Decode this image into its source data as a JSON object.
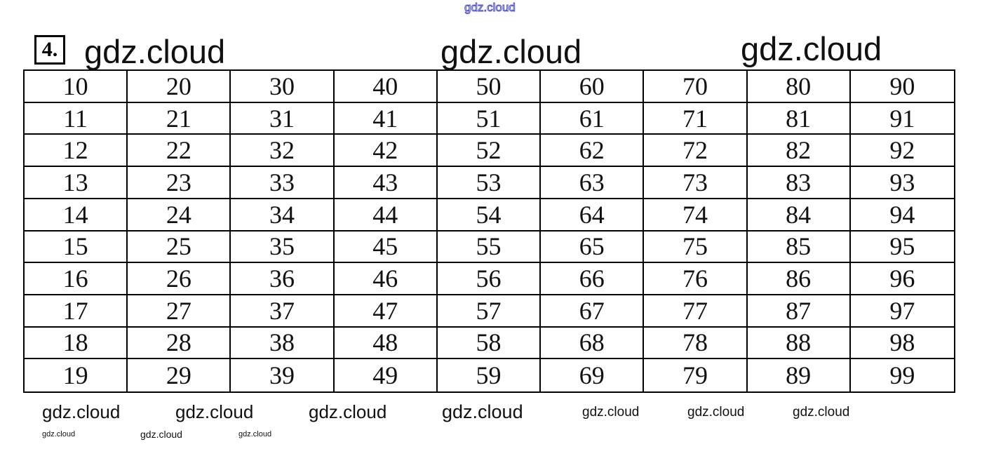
{
  "exercise_number": "4.",
  "table": {
    "rows": [
      [
        "10",
        "20",
        "30",
        "40",
        "50",
        "60",
        "70",
        "80",
        "90"
      ],
      [
        "11",
        "21",
        "31",
        "41",
        "51",
        "61",
        "71",
        "81",
        "91"
      ],
      [
        "12",
        "22",
        "32",
        "42",
        "52",
        "62",
        "72",
        "82",
        "92"
      ],
      [
        "13",
        "23",
        "33",
        "43",
        "53",
        "63",
        "73",
        "83",
        "93"
      ],
      [
        "14",
        "24",
        "34",
        "44",
        "54",
        "64",
        "74",
        "84",
        "94"
      ],
      [
        "15",
        "25",
        "35",
        "45",
        "55",
        "65",
        "75",
        "85",
        "95"
      ],
      [
        "16",
        "26",
        "36",
        "46",
        "56",
        "66",
        "76",
        "86",
        "96"
      ],
      [
        "17",
        "27",
        "37",
        "47",
        "57",
        "67",
        "77",
        "87",
        "97"
      ],
      [
        "18",
        "28",
        "38",
        "48",
        "58",
        "68",
        "78",
        "88",
        "98"
      ],
      [
        "19",
        "29",
        "39",
        "49",
        "59",
        "69",
        "79",
        "89",
        "99"
      ]
    ]
  },
  "watermarks": [
    "gdz.cloud",
    "gdz.cloud",
    "gdz.cloud",
    "gdz.cloud",
    "gdz.cloud",
    "gdz.cloud",
    "gdz.cloud",
    "gdz.cloud",
    "gdz.cloud",
    "gdz.cloud",
    "gdz.cloud",
    "gdz.cloud",
    "gdz.cloud",
    "gdz.cloud"
  ],
  "colors": {
    "top_watermark_outline": "#4a4ad0",
    "text": "#111111"
  }
}
